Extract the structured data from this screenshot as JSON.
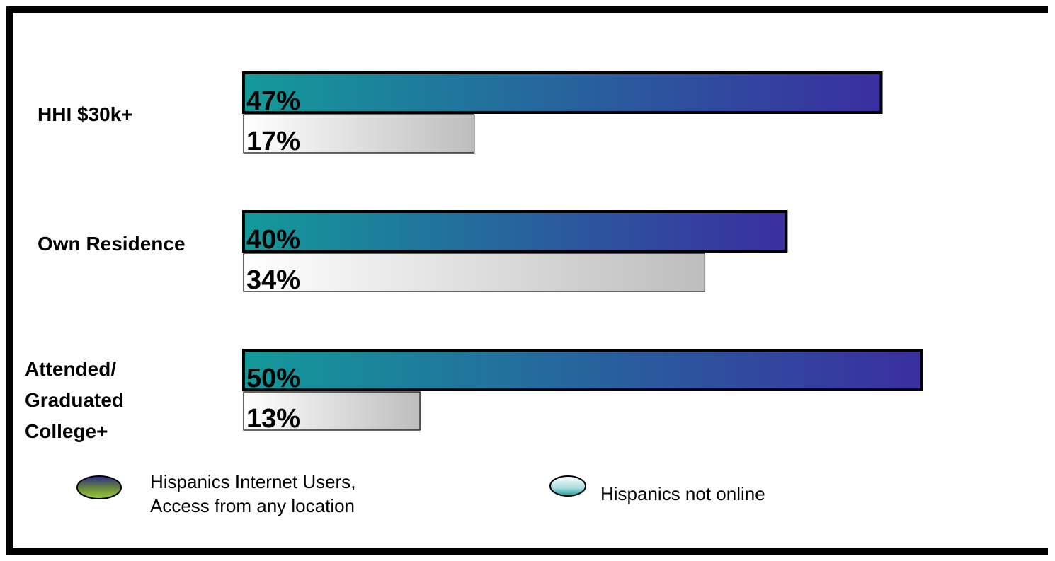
{
  "chart_data": {
    "type": "bar",
    "orientation": "horizontal",
    "categories": [
      [
        "HHI $30k+"
      ],
      [
        "Own Residence"
      ],
      [
        "Attended/",
        "Graduated",
        "College+"
      ]
    ],
    "series": [
      {
        "name": "Hispanics Internet Users, Access from any location",
        "legend_lines": [
          "Hispanics Internet Users,",
          "Access from any location"
        ],
        "values": [
          47,
          40,
          50
        ],
        "value_labels": [
          "47%",
          "40%",
          "50%"
        ],
        "colors": [
          "#139a9a",
          "#3a2ea0"
        ]
      },
      {
        "name": "Hispanics not online",
        "legend_lines": [
          "Hispanics not online"
        ],
        "values": [
          17,
          34,
          13
        ],
        "value_labels": [
          "17%",
          "34%",
          "13%"
        ],
        "colors": [
          "#ffffff",
          "#bdbdbd"
        ]
      }
    ],
    "xlim": [
      0,
      50
    ],
    "grid": false,
    "legend_position": "bottom"
  }
}
